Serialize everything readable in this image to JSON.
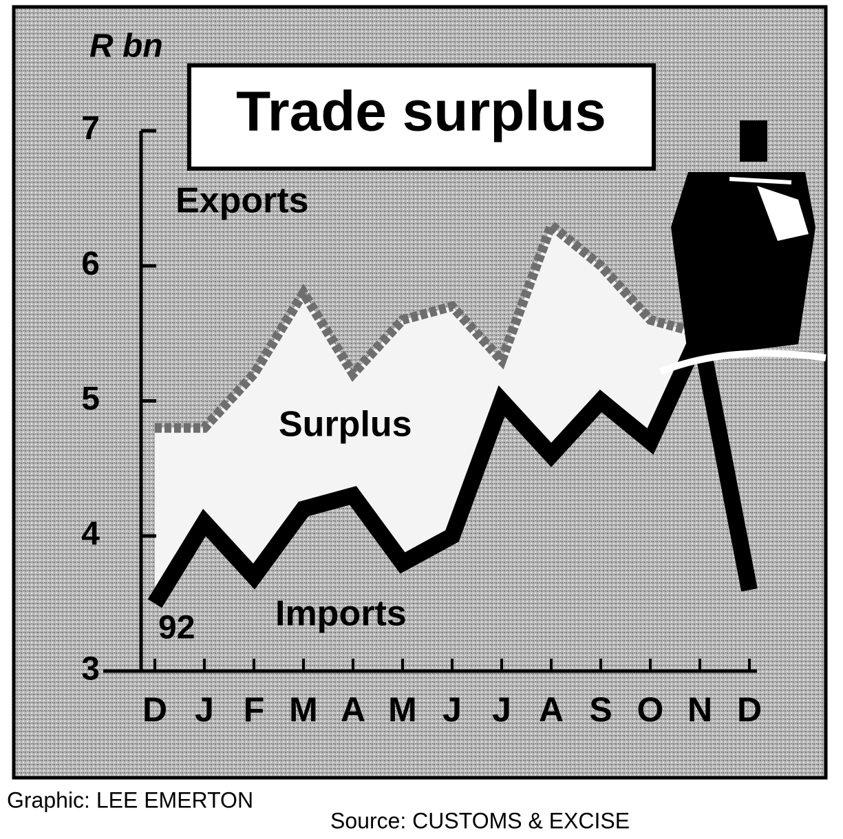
{
  "chart_data": {
    "type": "line",
    "title": "Trade surplus",
    "y_axis_label": "R bn",
    "year_label": "92",
    "categories": [
      "D",
      "J",
      "F",
      "M",
      "A",
      "M",
      "J",
      "J",
      "A",
      "S",
      "O",
      "N",
      "D"
    ],
    "series": [
      {
        "name": "Exports",
        "color": "#6e6e6e",
        "values": [
          4.8,
          4.8,
          5.2,
          5.8,
          5.2,
          5.6,
          5.7,
          5.3,
          6.3,
          6.0,
          5.6,
          5.5,
          null
        ]
      },
      {
        "name": "Imports",
        "color": "#000000",
        "values": [
          3.5,
          4.1,
          3.7,
          4.2,
          4.3,
          3.8,
          4.0,
          5.0,
          4.6,
          5.0,
          4.7,
          5.5,
          3.6
        ]
      }
    ],
    "area_label": "Surplus",
    "ylim": [
      3,
      7
    ],
    "yticks": [
      3,
      4,
      5,
      6,
      7
    ],
    "footer": {
      "credit": "Graphic: LEE EMERTON",
      "source": "Source: CUSTOMS & EXCISE"
    }
  }
}
